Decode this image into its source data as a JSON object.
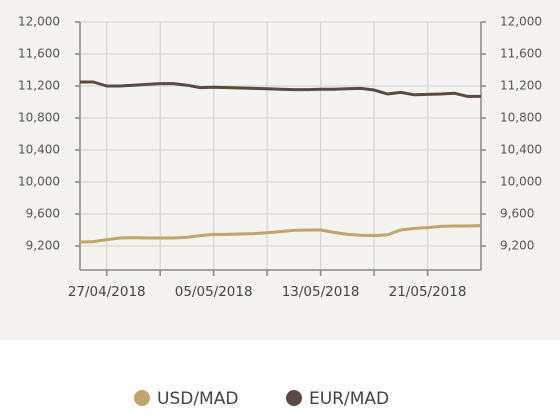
{
  "chart_data": {
    "type": "line",
    "x": [
      "25/04/2018",
      "26/04/2018",
      "27/04/2018",
      "28/04/2018",
      "29/04/2018",
      "30/04/2018",
      "01/05/2018",
      "02/05/2018",
      "03/05/2018",
      "04/05/2018",
      "05/05/2018",
      "06/05/2018",
      "07/05/2018",
      "08/05/2018",
      "09/05/2018",
      "10/05/2018",
      "11/05/2018",
      "12/05/2018",
      "13/05/2018",
      "14/05/2018",
      "15/05/2018",
      "16/05/2018",
      "17/05/2018",
      "18/05/2018",
      "19/05/2018",
      "20/05/2018",
      "21/05/2018",
      "22/05/2018",
      "23/05/2018",
      "24/05/2018",
      "25/05/2018"
    ],
    "series": [
      {
        "name": "USD/MAD",
        "color": "#c2a56b",
        "values": [
          9250,
          9255,
          9280,
          9300,
          9305,
          9300,
          9300,
          9300,
          9310,
          9330,
          9345,
          9345,
          9350,
          9355,
          9365,
          9380,
          9395,
          9400,
          9400,
          9370,
          9345,
          9335,
          9330,
          9340,
          9400,
          9420,
          9430,
          9445,
          9450,
          9450,
          9455
        ]
      },
      {
        "name": "EUR/MAD",
        "color": "#5b4a42",
        "values": [
          11250,
          11250,
          11200,
          11200,
          11210,
          11220,
          11230,
          11230,
          11210,
          11180,
          11185,
          11180,
          11175,
          11170,
          11165,
          11160,
          11155,
          11155,
          11160,
          11160,
          11165,
          11170,
          11150,
          11100,
          11120,
          11090,
          11095,
          11100,
          11110,
          11070,
          11070
        ]
      }
    ],
    "ylim": [
      8900,
      12000
    ],
    "yticks": [
      {
        "value": 9200,
        "label": "9,200"
      },
      {
        "value": 9600,
        "label": "9,600"
      },
      {
        "value": 10000,
        "label": "10,000"
      },
      {
        "value": 10400,
        "label": "10,400"
      },
      {
        "value": 10800,
        "label": "10,800"
      },
      {
        "value": 11200,
        "label": "11,200"
      },
      {
        "value": 11600,
        "label": "11,600"
      },
      {
        "value": 12000,
        "label": "12,000"
      }
    ],
    "y2lim": [
      8900,
      12000
    ],
    "y2ticks": [
      {
        "value": 9200,
        "label": "9,200"
      },
      {
        "value": 9600,
        "label": "9,600"
      },
      {
        "value": 10000,
        "label": "10,000"
      },
      {
        "value": 10400,
        "label": "10,400"
      },
      {
        "value": 10800,
        "label": "10,800"
      },
      {
        "value": 11200,
        "label": "11,200"
      },
      {
        "value": 11600,
        "label": "11,600"
      },
      {
        "value": 12000,
        "label": "12,000"
      }
    ],
    "xticks": [
      "27/04/2018",
      "05/05/2018",
      "13/05/2018",
      "21/05/2018"
    ],
    "grid": true
  }
}
